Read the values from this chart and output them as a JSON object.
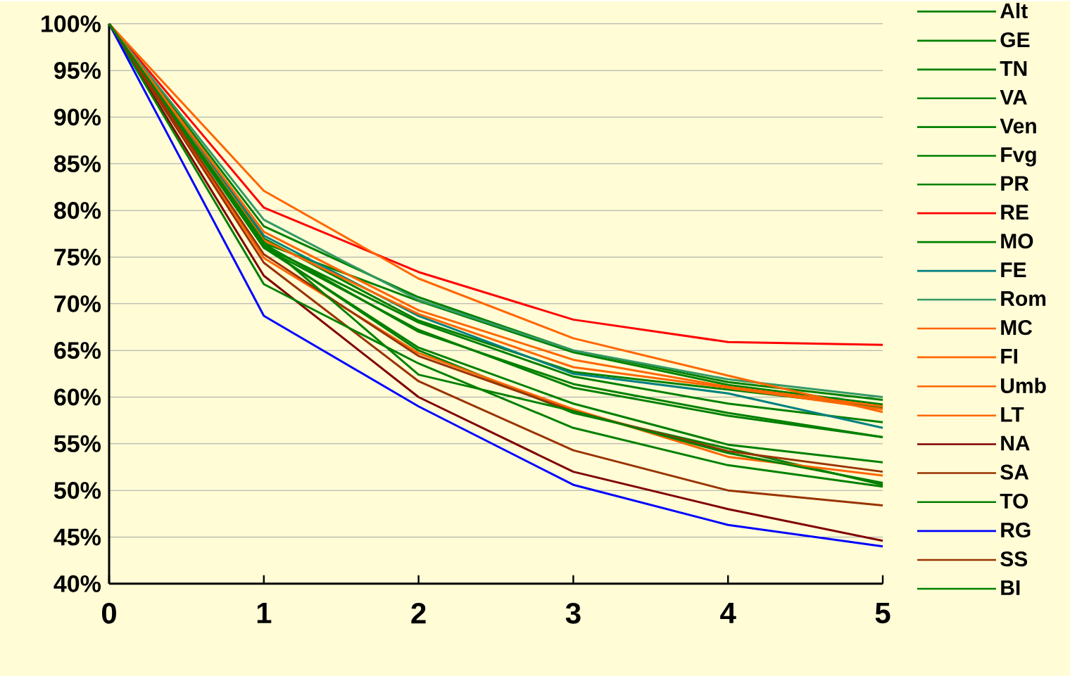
{
  "chart_data": {
    "type": "line",
    "xlim": [
      0,
      5
    ],
    "xticks": [
      0,
      1,
      2,
      3,
      4,
      5
    ],
    "ylim": [
      40,
      100
    ],
    "yticks": [
      {
        "value": 40,
        "label": "40%"
      },
      {
        "value": 45,
        "label": "45%"
      },
      {
        "value": 50,
        "label": "50%"
      },
      {
        "value": 55,
        "label": "55%"
      },
      {
        "value": 60,
        "label": "60%"
      },
      {
        "value": 65,
        "label": "65%"
      },
      {
        "value": 70,
        "label": "70%"
      },
      {
        "value": 75,
        "label": "75%"
      },
      {
        "value": 80,
        "label": "80%"
      },
      {
        "value": 85,
        "label": "85%"
      },
      {
        "value": 90,
        "label": "90%"
      },
      {
        "value": 95,
        "label": "95%"
      },
      {
        "value": 100,
        "label": "100%"
      }
    ],
    "grid": "y",
    "legend": "right",
    "marker": "none",
    "line_style": "solid",
    "x": [
      0,
      1,
      2,
      3,
      4,
      5
    ],
    "series": [
      {
        "name": "Alt",
        "color": "#008000",
        "values": [
          100,
          78.3,
          70.7,
          65.0,
          61.6,
          59.7
        ]
      },
      {
        "name": "GE",
        "color": "#008000",
        "values": [
          100,
          76.5,
          70.3,
          64.8,
          61.3,
          59.2
        ]
      },
      {
        "name": "TN",
        "color": "#008000",
        "values": [
          100,
          76.2,
          68.0,
          62.2,
          59.3,
          57.3
        ]
      },
      {
        "name": "VA",
        "color": "#008000",
        "values": [
          100,
          76.0,
          67.2,
          61.0,
          58.0,
          55.7
        ]
      },
      {
        "name": "Ven",
        "color": "#008000",
        "values": [
          100,
          76.4,
          67.0,
          61.4,
          58.3,
          55.7
        ]
      },
      {
        "name": "Fvg",
        "color": "#008000",
        "values": [
          100,
          76.0,
          65.3,
          59.3,
          54.9,
          53.0
        ]
      },
      {
        "name": "PR",
        "color": "#008000",
        "values": [
          100,
          77.0,
          68.2,
          62.7,
          60.8,
          58.9
        ]
      },
      {
        "name": "RE",
        "color": "#ff0000",
        "values": [
          100,
          80.3,
          73.4,
          68.3,
          65.9,
          65.6
        ]
      },
      {
        "name": "MO",
        "color": "#008000",
        "values": [
          100,
          76.1,
          65.0,
          58.3,
          54.5,
          50.6
        ]
      },
      {
        "name": "FE",
        "color": "#008080",
        "values": [
          100,
          77.3,
          68.7,
          62.5,
          60.4,
          56.7
        ]
      },
      {
        "name": "Rom",
        "color": "#339966",
        "values": [
          100,
          79.0,
          70.4,
          65.0,
          61.9,
          60.0
        ]
      },
      {
        "name": "MC",
        "color": "#ff6600",
        "values": [
          100,
          82.1,
          72.7,
          66.3,
          62.3,
          58.4
        ]
      },
      {
        "name": "FI",
        "color": "#ff6600",
        "values": [
          100,
          77.7,
          69.3,
          64.0,
          61.1,
          59.0
        ]
      },
      {
        "name": "Umb",
        "color": "#ff6600",
        "values": [
          100,
          76.8,
          68.9,
          63.2,
          61.0,
          58.7
        ]
      },
      {
        "name": "LT",
        "color": "#ff6600",
        "values": [
          100,
          74.9,
          64.7,
          58.7,
          53.6,
          51.6
        ]
      },
      {
        "name": "NA",
        "color": "#800000",
        "values": [
          100,
          73.0,
          60.0,
          52.0,
          48.0,
          44.6
        ]
      },
      {
        "name": "SA",
        "color": "#993300",
        "values": [
          100,
          74.4,
          61.7,
          54.3,
          50.0,
          48.4
        ]
      },
      {
        "name": "TO",
        "color": "#008000",
        "values": [
          100,
          72.1,
          63.6,
          56.7,
          52.7,
          50.4
        ]
      },
      {
        "name": "RG",
        "color": "#0000ff",
        "values": [
          100,
          68.7,
          59.0,
          50.6,
          46.3,
          44.0
        ]
      },
      {
        "name": "SS",
        "color": "#993300",
        "values": [
          100,
          75.3,
          64.4,
          58.5,
          54.2,
          52.0
        ]
      },
      {
        "name": "BI",
        "color": "#008000",
        "values": [
          100,
          76.6,
          62.4,
          58.5,
          54.0,
          50.8
        ]
      }
    ]
  }
}
